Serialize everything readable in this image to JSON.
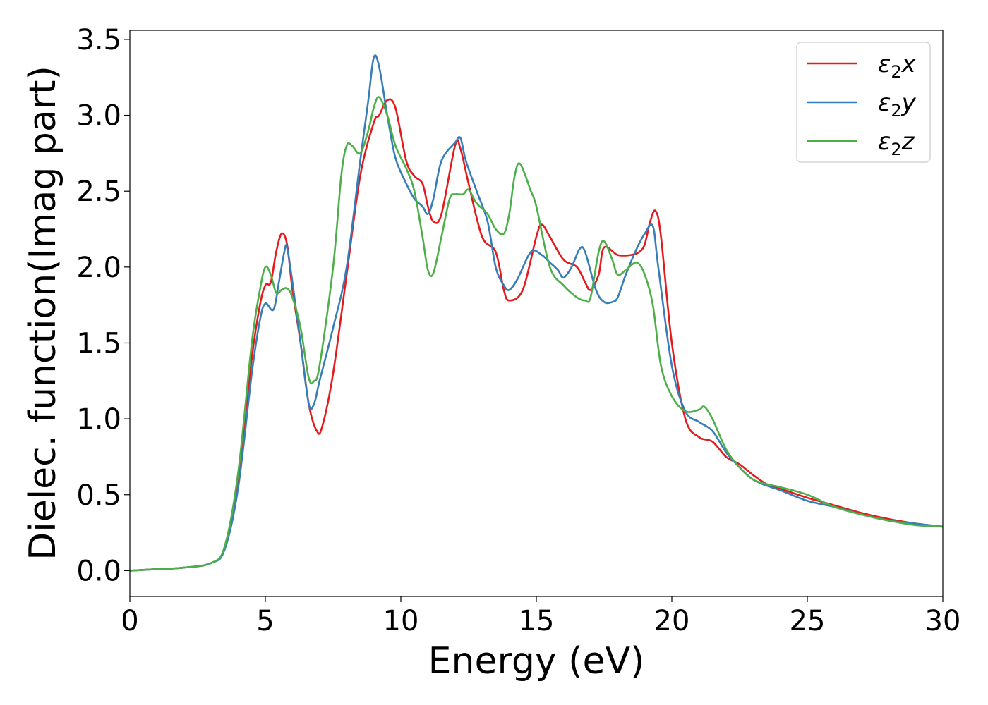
{
  "chart_data": {
    "type": "line",
    "xlabel": "Energy (eV)",
    "ylabel": "Dielec. function(Imag part)",
    "xlim": [
      0,
      30
    ],
    "ylim": [
      -0.17,
      3.56
    ],
    "xticks": [
      "0",
      "5",
      "10",
      "15",
      "20",
      "25",
      "30"
    ],
    "yticks": [
      "0.0",
      "0.5",
      "1.0",
      "1.5",
      "2.0",
      "2.5",
      "3.0",
      "3.5"
    ],
    "grid": false,
    "legend_position": "top-right",
    "series": [
      {
        "name": "ε₂x",
        "label_base": "ε",
        "label_sub": "2",
        "label_suffix": "x",
        "color": "#e41a1c",
        "x": [
          0,
          1,
          2,
          3,
          3.5,
          4,
          4.5,
          4.8,
          5.0,
          5.2,
          5.4,
          5.6,
          5.8,
          6.0,
          6.3,
          6.6,
          6.9,
          7.1,
          7.5,
          8.0,
          8.5,
          9.0,
          9.2,
          9.5,
          9.8,
          10.2,
          10.5,
          10.8,
          11.0,
          11.2,
          11.5,
          12.0,
          12.2,
          12.5,
          13.0,
          13.5,
          13.8,
          14.0,
          14.5,
          15.0,
          15.2,
          15.5,
          16.0,
          16.5,
          16.8,
          17.0,
          17.3,
          17.5,
          18.0,
          18.5,
          18.8,
          19.0,
          19.2,
          19.4,
          19.6,
          20.0,
          20.5,
          21.0,
          21.5,
          22.0,
          22.5,
          23.0,
          23.5,
          24.0,
          25.0,
          26.0,
          27.0,
          28.0,
          29.0,
          30.0
        ],
        "values": [
          0.0,
          0.01,
          0.02,
          0.05,
          0.15,
          0.6,
          1.4,
          1.75,
          1.88,
          1.9,
          2.1,
          2.22,
          2.15,
          1.85,
          1.5,
          1.1,
          0.92,
          0.95,
          1.3,
          1.95,
          2.6,
          2.95,
          3.0,
          3.1,
          3.05,
          2.7,
          2.6,
          2.55,
          2.4,
          2.3,
          2.35,
          2.8,
          2.78,
          2.55,
          2.2,
          2.1,
          1.85,
          1.78,
          1.85,
          2.2,
          2.28,
          2.2,
          2.05,
          2.0,
          1.9,
          1.85,
          1.95,
          2.13,
          2.08,
          2.08,
          2.1,
          2.15,
          2.3,
          2.37,
          2.2,
          1.5,
          1.0,
          0.88,
          0.85,
          0.75,
          0.7,
          0.63,
          0.57,
          0.54,
          0.48,
          0.43,
          0.38,
          0.34,
          0.31,
          0.29
        ]
      },
      {
        "name": "ε₂y",
        "label_base": "ε",
        "label_sub": "2",
        "label_suffix": "y",
        "color": "#377eb8",
        "x": [
          0,
          1,
          2,
          3,
          3.5,
          4,
          4.5,
          4.8,
          5.0,
          5.3,
          5.5,
          5.7,
          5.8,
          6.0,
          6.3,
          6.6,
          6.8,
          7.0,
          7.5,
          8.0,
          8.5,
          8.8,
          9.0,
          9.2,
          9.5,
          9.8,
          10.2,
          10.5,
          10.8,
          11.0,
          11.2,
          11.5,
          12.0,
          12.2,
          12.4,
          12.8,
          13.2,
          13.5,
          13.8,
          14.0,
          14.3,
          14.8,
          15.2,
          15.5,
          15.8,
          16.0,
          16.3,
          16.6,
          16.8,
          17.2,
          17.5,
          17.8,
          18.0,
          18.3,
          18.7,
          19.0,
          19.3,
          19.5,
          20.0,
          20.5,
          21.0,
          21.5,
          22.0,
          22.5,
          23.0,
          23.5,
          24.0,
          25.0,
          26.0,
          27.0,
          28.0,
          29.0,
          30.0
        ],
        "values": [
          0.0,
          0.01,
          0.02,
          0.05,
          0.14,
          0.55,
          1.3,
          1.65,
          1.76,
          1.72,
          1.9,
          2.1,
          2.13,
          1.9,
          1.5,
          1.1,
          1.1,
          1.25,
          1.6,
          2.0,
          2.7,
          3.1,
          3.38,
          3.32,
          3.0,
          2.72,
          2.55,
          2.45,
          2.4,
          2.35,
          2.45,
          2.7,
          2.82,
          2.85,
          2.7,
          2.5,
          2.3,
          2.0,
          1.88,
          1.85,
          1.92,
          2.1,
          2.08,
          2.03,
          1.98,
          1.93,
          2.0,
          2.12,
          2.1,
          1.85,
          1.77,
          1.77,
          1.8,
          1.95,
          2.12,
          2.22,
          2.27,
          2.0,
          1.35,
          1.05,
          0.98,
          0.92,
          0.78,
          0.68,
          0.6,
          0.56,
          0.53,
          0.46,
          0.42,
          0.37,
          0.33,
          0.31,
          0.29
        ]
      },
      {
        "name": "ε₂z",
        "label_base": "ε",
        "label_sub": "2",
        "label_suffix": "z",
        "color": "#4daf4a",
        "x": [
          0,
          1,
          2,
          3,
          3.5,
          4,
          4.5,
          4.8,
          5.0,
          5.2,
          5.4,
          5.6,
          5.8,
          6.0,
          6.3,
          6.6,
          6.8,
          7.0,
          7.5,
          7.8,
          8.0,
          8.2,
          8.5,
          8.8,
          9.0,
          9.2,
          9.5,
          9.8,
          10.2,
          10.5,
          10.8,
          11.0,
          11.2,
          11.5,
          11.8,
          12.0,
          12.3,
          12.5,
          12.8,
          13.2,
          13.5,
          13.8,
          14.0,
          14.2,
          14.4,
          14.8,
          15.0,
          15.5,
          16.0,
          16.5,
          16.8,
          17.0,
          17.3,
          17.5,
          17.8,
          18.0,
          18.3,
          18.7,
          19.0,
          19.3,
          19.6,
          20.0,
          20.5,
          21.0,
          21.2,
          21.5,
          22.0,
          22.5,
          23.0,
          23.5,
          24.0,
          25.0,
          26.0,
          27.0,
          28.0,
          29.0,
          30.0
        ],
        "values": [
          0.0,
          0.01,
          0.02,
          0.05,
          0.16,
          0.65,
          1.5,
          1.85,
          2.0,
          1.95,
          1.83,
          1.85,
          1.86,
          1.8,
          1.6,
          1.27,
          1.25,
          1.35,
          2.0,
          2.6,
          2.8,
          2.8,
          2.75,
          2.9,
          3.05,
          3.12,
          3.0,
          2.8,
          2.65,
          2.5,
          2.2,
          1.98,
          1.96,
          2.2,
          2.45,
          2.48,
          2.48,
          2.51,
          2.42,
          2.35,
          2.25,
          2.22,
          2.35,
          2.6,
          2.68,
          2.5,
          2.4,
          2.0,
          1.88,
          1.8,
          1.78,
          1.8,
          2.1,
          2.17,
          2.05,
          1.95,
          1.98,
          2.03,
          1.95,
          1.75,
          1.35,
          1.15,
          1.05,
          1.06,
          1.08,
          1.0,
          0.8,
          0.68,
          0.6,
          0.57,
          0.55,
          0.5,
          0.42,
          0.37,
          0.33,
          0.3,
          0.29
        ]
      }
    ]
  }
}
